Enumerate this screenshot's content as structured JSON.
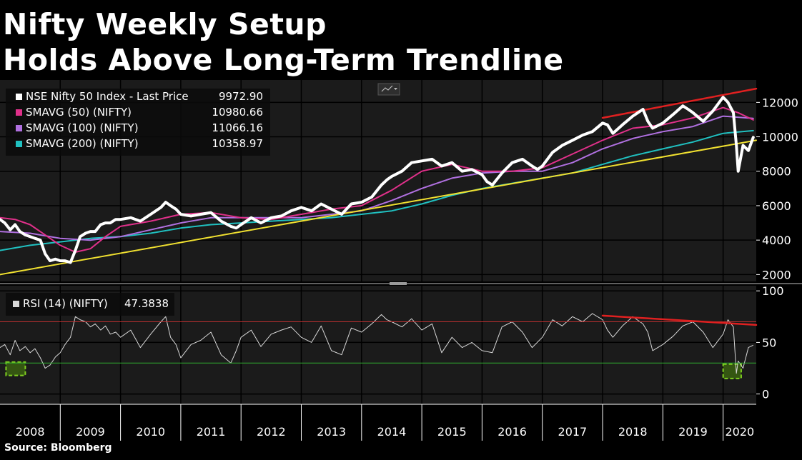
{
  "header": {
    "title_line1": "Nifty Weekly Setup",
    "title_line2": "Holds Above Long-Term Trendline"
  },
  "footer": {
    "source": "Source: Bloomberg"
  },
  "colors": {
    "price": "#ffffff",
    "sma50": "#e0308a",
    "sma100": "#b070e0",
    "sma200": "#20c0c0",
    "trendline": "#f0e030",
    "resistance": "#e02020",
    "rsi_line": "#d8d8d8",
    "rsi_overbought": "#c03030",
    "rsi_oversold": "#30b030",
    "oversold_box": "#80d020"
  },
  "chart_data": [
    {
      "type": "line",
      "x_tick_labels": [
        "2008",
        "2009",
        "2010",
        "2011",
        "2012",
        "2013",
        "2014",
        "2015",
        "2016",
        "2017",
        "2018",
        "2019",
        "2020"
      ],
      "y_ticks": [
        2000,
        4000,
        6000,
        8000,
        10000,
        12000
      ],
      "y_tick_labels": [
        "2000",
        "4000",
        "6000",
        "8000",
        "10000",
        "12000"
      ],
      "ylim": [
        1600,
        13300
      ],
      "xlim": [
        2008.0,
        2020.55
      ],
      "legend_position": "top-left",
      "legend": [
        {
          "label": "NSE Nifty 50 Index - Last Price",
          "value": "9972.90"
        },
        {
          "label": "SMAVG (50) (NIFTY)",
          "value": "10980.66"
        },
        {
          "label": "SMAVG (100) (NIFTY)",
          "value": "11066.16"
        },
        {
          "label": "SMAVG (200) (NIFTY)",
          "value": "10358.97"
        }
      ],
      "series": [
        {
          "name": "NSE Nifty 50 Index - Last Price",
          "color_key": "price",
          "x": [
            2008.0,
            2008.08,
            2008.17,
            2008.25,
            2008.33,
            2008.42,
            2008.5,
            2008.58,
            2008.67,
            2008.75,
            2008.83,
            2008.92,
            2009.0,
            2009.08,
            2009.17,
            2009.25,
            2009.33,
            2009.42,
            2009.5,
            2009.58,
            2009.67,
            2009.75,
            2009.83,
            2009.92,
            2010.0,
            2010.17,
            2010.33,
            2010.5,
            2010.67,
            2010.75,
            2010.83,
            2010.92,
            2011.0,
            2011.17,
            2011.33,
            2011.5,
            2011.67,
            2011.83,
            2011.92,
            2012.0,
            2012.17,
            2012.33,
            2012.5,
            2012.67,
            2012.83,
            2013.0,
            2013.17,
            2013.33,
            2013.5,
            2013.67,
            2013.83,
            2014.0,
            2014.17,
            2014.33,
            2014.42,
            2014.5,
            2014.67,
            2014.83,
            2015.0,
            2015.17,
            2015.33,
            2015.5,
            2015.67,
            2015.83,
            2016.0,
            2016.08,
            2016.17,
            2016.33,
            2016.5,
            2016.67,
            2016.83,
            2016.92,
            2017.0,
            2017.17,
            2017.33,
            2017.5,
            2017.67,
            2017.83,
            2018.0,
            2018.08,
            2018.17,
            2018.33,
            2018.5,
            2018.67,
            2018.75,
            2018.83,
            2019.0,
            2019.17,
            2019.33,
            2019.42,
            2019.5,
            2019.67,
            2019.83,
            2020.0,
            2020.08,
            2020.17,
            2020.22,
            2020.25,
            2020.33,
            2020.42,
            2020.5
          ],
          "values": [
            5200,
            5000,
            4600,
            4900,
            4500,
            4300,
            4200,
            4100,
            4000,
            3200,
            2800,
            2900,
            2800,
            2800,
            2700,
            3400,
            4200,
            4400,
            4500,
            4500,
            4900,
            5000,
            5000,
            5200,
            5200,
            5300,
            5100,
            5500,
            5900,
            6200,
            6000,
            5800,
            5500,
            5400,
            5500,
            5600,
            5100,
            4800,
            4700,
            4900,
            5300,
            5000,
            5300,
            5400,
            5700,
            5900,
            5700,
            6100,
            5800,
            5500,
            6100,
            6200,
            6500,
            7200,
            7500,
            7700,
            8000,
            8500,
            8600,
            8700,
            8300,
            8500,
            8000,
            8100,
            7800,
            7400,
            7200,
            7900,
            8500,
            8700,
            8300,
            8100,
            8300,
            9100,
            9500,
            9800,
            10100,
            10300,
            10800,
            10700,
            10200,
            10700,
            11200,
            11600,
            10900,
            10500,
            10800,
            11300,
            11800,
            11600,
            11400,
            10900,
            11500,
            12300,
            12000,
            11400,
            9500,
            8000,
            9500,
            9200,
            9972.9
          ]
        },
        {
          "name": "SMAVG (50) (NIFTY)",
          "color_key": "sma50",
          "x": [
            2008.0,
            2008.25,
            2008.5,
            2008.75,
            2009.0,
            2009.25,
            2009.5,
            2009.75,
            2010.0,
            2010.5,
            2011.0,
            2011.5,
            2012.0,
            2012.5,
            2013.0,
            2013.5,
            2014.0,
            2014.5,
            2015.0,
            2015.5,
            2016.0,
            2016.5,
            2017.0,
            2017.5,
            2018.0,
            2018.5,
            2019.0,
            2019.5,
            2019.83,
            2020.0,
            2020.25,
            2020.5
          ],
          "values": [
            5300,
            5200,
            4900,
            4300,
            3700,
            3300,
            3500,
            4200,
            4800,
            5100,
            5500,
            5600,
            5300,
            5200,
            5500,
            5800,
            6000,
            6900,
            8000,
            8400,
            8000,
            8000,
            8200,
            9000,
            9800,
            10500,
            10700,
            11100,
            11500,
            11700,
            11400,
            10980.66
          ]
        },
        {
          "name": "SMAVG (100) (NIFTY)",
          "color_key": "sma100",
          "x": [
            2008.0,
            2008.5,
            2009.0,
            2009.5,
            2010.0,
            2010.5,
            2011.0,
            2011.5,
            2012.0,
            2012.5,
            2013.0,
            2013.5,
            2014.0,
            2014.5,
            2015.0,
            2015.5,
            2016.0,
            2016.5,
            2017.0,
            2017.5,
            2018.0,
            2018.5,
            2019.0,
            2019.5,
            2020.0,
            2020.5
          ],
          "values": [
            4500,
            4400,
            4100,
            4000,
            4200,
            4600,
            5000,
            5300,
            5300,
            5300,
            5300,
            5500,
            5700,
            6300,
            7000,
            7600,
            7900,
            8000,
            8000,
            8500,
            9300,
            9900,
            10300,
            10600,
            11200,
            11066.16
          ]
        },
        {
          "name": "SMAVG (200) (NIFTY)",
          "color_key": "sma200",
          "x": [
            2008.0,
            2008.5,
            2009.0,
            2009.5,
            2010.0,
            2010.5,
            2011.0,
            2011.5,
            2012.0,
            2012.5,
            2013.0,
            2013.5,
            2014.0,
            2014.5,
            2015.0,
            2015.5,
            2016.0,
            2016.5,
            2017.0,
            2017.5,
            2018.0,
            2018.5,
            2019.0,
            2019.5,
            2020.0,
            2020.5
          ],
          "values": [
            3400,
            3700,
            3900,
            4100,
            4200,
            4400,
            4700,
            4900,
            5000,
            5100,
            5200,
            5300,
            5500,
            5700,
            6100,
            6600,
            7000,
            7300,
            7600,
            7900,
            8400,
            8900,
            9300,
            9700,
            10200,
            10358.97
          ]
        },
        {
          "color_key": "trendline",
          "x": [
            2008.0,
            2020.55
          ],
          "values": [
            2000,
            9800
          ]
        },
        {
          "color_key": "resistance",
          "x": [
            2018.0,
            2020.55
          ],
          "values": [
            11100,
            12800
          ]
        }
      ]
    },
    {
      "type": "line",
      "x_tick_labels": [
        "2008",
        "2009",
        "2010",
        "2011",
        "2012",
        "2013",
        "2014",
        "2015",
        "2016",
        "2017",
        "2018",
        "2019",
        "2020"
      ],
      "y_ticks": [
        0,
        50,
        100
      ],
      "y_tick_labels": [
        "0",
        "50",
        "100"
      ],
      "ylim": [
        -10,
        105
      ],
      "xlim": [
        2008.0,
        2020.55
      ],
      "legend_position": "top-left",
      "legend": [
        {
          "label": "RSI (14) (NIFTY)",
          "value": "47.3838"
        }
      ],
      "reference_lines": [
        70,
        30
      ],
      "series": [
        {
          "name": "RSI (14) (NIFTY)",
          "color_key": "rsi_line",
          "x": [
            2008.0,
            2008.08,
            2008.17,
            2008.25,
            2008.33,
            2008.42,
            2008.5,
            2008.58,
            2008.67,
            2008.75,
            2008.83,
            2008.92,
            2009.0,
            2009.08,
            2009.17,
            2009.25,
            2009.33,
            2009.42,
            2009.5,
            2009.58,
            2009.67,
            2009.75,
            2009.83,
            2009.92,
            2010.0,
            2010.17,
            2010.33,
            2010.5,
            2010.67,
            2010.75,
            2010.83,
            2010.92,
            2011.0,
            2011.17,
            2011.33,
            2011.5,
            2011.67,
            2011.83,
            2011.92,
            2012.0,
            2012.17,
            2012.33,
            2012.5,
            2012.67,
            2012.83,
            2013.0,
            2013.17,
            2013.33,
            2013.5,
            2013.67,
            2013.83,
            2014.0,
            2014.17,
            2014.33,
            2014.42,
            2014.5,
            2014.67,
            2014.83,
            2015.0,
            2015.17,
            2015.33,
            2015.5,
            2015.67,
            2015.83,
            2016.0,
            2016.17,
            2016.33,
            2016.5,
            2016.67,
            2016.83,
            2017.0,
            2017.17,
            2017.33,
            2017.5,
            2017.67,
            2017.83,
            2018.0,
            2018.08,
            2018.17,
            2018.33,
            2018.5,
            2018.67,
            2018.75,
            2018.83,
            2019.0,
            2019.17,
            2019.33,
            2019.5,
            2019.67,
            2019.83,
            2020.0,
            2020.08,
            2020.17,
            2020.22,
            2020.25,
            2020.33,
            2020.42,
            2020.5
          ],
          "values": [
            45,
            48,
            38,
            52,
            42,
            46,
            40,
            44,
            35,
            25,
            28,
            36,
            40,
            48,
            55,
            75,
            72,
            70,
            65,
            68,
            62,
            66,
            58,
            60,
            55,
            62,
            45,
            58,
            70,
            75,
            55,
            48,
            35,
            48,
            52,
            60,
            38,
            30,
            42,
            55,
            62,
            46,
            58,
            62,
            65,
            55,
            50,
            66,
            42,
            38,
            64,
            60,
            68,
            77,
            72,
            70,
            65,
            73,
            62,
            68,
            40,
            55,
            45,
            50,
            42,
            40,
            65,
            70,
            60,
            45,
            55,
            72,
            66,
            75,
            70,
            78,
            72,
            62,
            55,
            66,
            75,
            68,
            60,
            42,
            48,
            56,
            66,
            70,
            60,
            45,
            58,
            72,
            65,
            20,
            32,
            25,
            45,
            47.3838
          ]
        }
      ],
      "highlight_boxes": [
        {
          "x_start": 2008.1,
          "x_end": 2008.42,
          "y_low": 18,
          "y_high": 31
        },
        {
          "x_start": 2020.0,
          "x_end": 2020.3,
          "y_low": 15,
          "y_high": 29
        }
      ],
      "resistance_line": {
        "x": [
          2018.0,
          2020.55
        ],
        "values": [
          76,
          67
        ]
      }
    }
  ]
}
